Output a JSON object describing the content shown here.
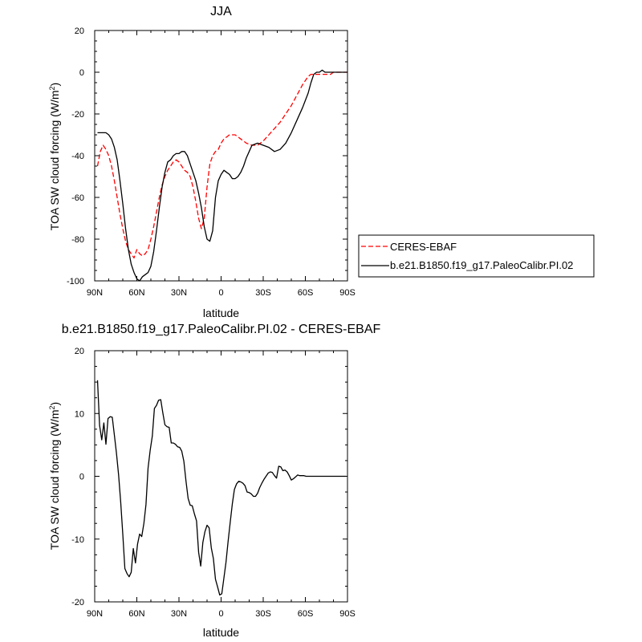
{
  "chart_data": [
    {
      "type": "line",
      "title": "JJA",
      "xlabel": "latitude",
      "ylabel": "TOA SW cloud forcing (W/m",
      "ylabel_sup": "2",
      "ylabel_end": ")",
      "xlim": [
        90,
        -90
      ],
      "ylim": [
        -100,
        20
      ],
      "xticks": [
        90,
        60,
        30,
        0,
        -30,
        -60,
        -90
      ],
      "xtick_labels": [
        "90N",
        "60N",
        "30N",
        "0",
        "30S",
        "60S",
        "90S"
      ],
      "yticks": [
        -100,
        -80,
        -60,
        -40,
        -20,
        0,
        20
      ],
      "ytick_labels": [
        "-100",
        "-80",
        "-60",
        "-40",
        "-20",
        "0",
        "20"
      ],
      "grid": false,
      "legend": "right",
      "series": [
        {
          "name": "CERES-EBAF",
          "color": "#ff0000",
          "dash": true,
          "x": [
            88,
            86,
            84,
            82,
            80,
            78,
            76,
            74,
            72,
            70,
            68,
            66,
            64,
            62,
            60,
            58,
            56,
            54,
            52,
            50,
            48,
            46,
            44,
            42,
            40,
            38,
            36,
            34,
            32,
            30,
            28,
            26,
            24,
            22,
            20,
            18,
            16,
            14,
            12,
            10,
            8,
            6,
            4,
            2,
            0,
            -2,
            -4,
            -6,
            -8,
            -10,
            -14,
            -18,
            -22,
            -26,
            -30,
            -34,
            -38,
            -42,
            -46,
            -50,
            -54,
            -58,
            -62,
            -64,
            -66,
            -68,
            -70,
            -72,
            -74,
            -76,
            -78,
            -80,
            -84,
            -88,
            -90
          ],
          "y": [
            -45,
            -38,
            -35,
            -37,
            -40,
            -45,
            -52,
            -60,
            -68,
            -75,
            -81,
            -85,
            -87,
            -89,
            -85,
            -87,
            -88,
            -87,
            -85,
            -80,
            -74,
            -67,
            -60,
            -54,
            -50,
            -47,
            -45,
            -43,
            -42,
            -43,
            -45,
            -47,
            -48,
            -50,
            -55,
            -62,
            -70,
            -75,
            -70,
            -55,
            -44,
            -40,
            -38,
            -37,
            -34,
            -32,
            -31,
            -30,
            -30,
            -30,
            -32,
            -34,
            -35,
            -35,
            -33,
            -30,
            -27,
            -24,
            -20,
            -16,
            -11,
            -6,
            -2,
            -1,
            -1,
            -1,
            -1,
            -1,
            -1,
            -1,
            -1,
            0,
            0,
            0,
            0
          ]
        },
        {
          "name": "b.e21.B1850.f19_g17.PaleoCalibr.PI.02",
          "color": "#000000",
          "dash": false,
          "x": [
            88,
            86,
            84,
            82,
            80,
            78,
            76,
            74,
            72,
            70,
            68,
            66,
            64,
            62,
            60,
            58,
            56,
            54,
            52,
            50,
            48,
            46,
            44,
            42,
            40,
            38,
            36,
            34,
            32,
            30,
            28,
            26,
            24,
            22,
            20,
            18,
            16,
            14,
            12,
            10,
            8,
            6,
            4,
            2,
            0,
            -2,
            -4,
            -6,
            -8,
            -10,
            -12,
            -14,
            -16,
            -18,
            -20,
            -22,
            -26,
            -30,
            -34,
            -38,
            -42,
            -46,
            -50,
            -54,
            -58,
            -62,
            -64,
            -66,
            -68,
            -70,
            -72,
            -74,
            -76,
            -78,
            -80,
            -84,
            -88,
            -90
          ],
          "y": [
            -29,
            -29,
            -29,
            -29,
            -30,
            -32,
            -36,
            -42,
            -52,
            -63,
            -75,
            -85,
            -92,
            -96,
            -99,
            -100,
            -98,
            -97,
            -96,
            -93,
            -86,
            -76,
            -65,
            -55,
            -48,
            -43,
            -42,
            -40,
            -39,
            -39,
            -38,
            -38,
            -40,
            -44,
            -48,
            -52,
            -58,
            -65,
            -74,
            -80,
            -81,
            -76,
            -60,
            -52,
            -49,
            -47,
            -48,
            -49,
            -51,
            -51,
            -50,
            -48,
            -45,
            -41,
            -38,
            -35,
            -34,
            -35,
            -36,
            -38,
            -37,
            -34,
            -29,
            -23,
            -17,
            -10,
            -5,
            -1,
            0,
            0,
            1,
            0,
            0,
            0,
            0,
            0,
            0,
            0
          ]
        }
      ]
    },
    {
      "type": "line",
      "title": "b.e21.B1850.f19_g17.PaleoCalibr.PI.02 - CERES-EBAF",
      "xlabel": "latitude",
      "ylabel": "TOA SW cloud forcing (W/m",
      "ylabel_sup": "2",
      "ylabel_end": ")",
      "xlim": [
        90,
        -90
      ],
      "ylim": [
        -20,
        20
      ],
      "xticks": [
        90,
        60,
        30,
        0,
        -30,
        -60,
        -90
      ],
      "xtick_labels": [
        "90N",
        "60N",
        "30N",
        "0",
        "30S",
        "60S",
        "90S"
      ],
      "yticks": [
        -20,
        -10,
        0,
        10,
        20
      ],
      "ytick_labels": [
        "-20",
        "-10",
        "0",
        "10",
        "20"
      ],
      "grid": false,
      "series": [
        {
          "color": "#000000",
          "dash": false,
          "x": [
            88,
            86.5,
            85,
            83.5,
            82,
            80.5,
            79,
            77.5,
            76,
            74.5,
            73,
            71.5,
            70,
            68.5,
            67,
            65.5,
            64,
            62.5,
            61,
            59.5,
            58,
            56.5,
            55,
            53.5,
            52,
            50.5,
            49,
            47.5,
            46,
            44.5,
            43,
            41.5,
            40,
            38.5,
            37,
            35.5,
            34,
            32.5,
            31,
            29.5,
            28,
            26.5,
            25,
            23.5,
            22,
            20.5,
            19,
            17.5,
            16,
            14.5,
            13,
            11.5,
            10,
            8.5,
            7,
            5.5,
            4,
            2.5,
            1,
            -0.5,
            -2,
            -3.5,
            -5,
            -6.5,
            -8,
            -9.5,
            -11,
            -12.5,
            -14,
            -15.5,
            -17,
            -18.5,
            -20,
            -21.5,
            -23,
            -24.5,
            -26,
            -27.5,
            -29,
            -30.5,
            -32,
            -33.5,
            -35,
            -36.5,
            -38,
            -39.5,
            -41,
            -42.5,
            -44,
            -45.5,
            -47,
            -48.5,
            -50,
            -51.5,
            -53,
            -54.5,
            -56,
            -57.5,
            -59,
            -60.5,
            -62,
            -63.5,
            -65,
            -66.5,
            -68,
            -69.5,
            -71,
            -72.5,
            -74,
            -75.5,
            -77,
            -78.5,
            -80,
            -81.5,
            -83,
            -84.5,
            -86,
            -87.5,
            -89
          ],
          "y": [
            15.3,
            8.1,
            5.8,
            8.5,
            5.1,
            9.2,
            9.5,
            9.4,
            6.6,
            3.7,
            0.2,
            -4.1,
            -9.2,
            -14.7,
            -15.5,
            -16,
            -15.3,
            -11.5,
            -13.8,
            -10.8,
            -9.2,
            -9.6,
            -7.5,
            -4.5,
            1.3,
            4.1,
            6.4,
            10.8,
            11.3,
            12.1,
            12.2,
            10.1,
            8.2,
            7.9,
            7.8,
            5.3,
            5.3,
            5.1,
            4.7,
            4.6,
            4,
            2.4,
            -0.8,
            -3.5,
            -4.6,
            -4.7,
            -6,
            -7.1,
            -12.1,
            -14.3,
            -10.5,
            -8.8,
            -7.8,
            -8.2,
            -11.4,
            -13.1,
            -16.4,
            -17.6,
            -18.9,
            -18.7,
            -16.2,
            -13.7,
            -10.3,
            -7.3,
            -4.4,
            -2.1,
            -1.2,
            -0.8,
            -0.9,
            -1.1,
            -1.5,
            -2.5,
            -2.6,
            -2.8,
            -3.2,
            -3.2,
            -2.7,
            -1.8,
            -1.1,
            -0.5,
            0,
            0.5,
            0.7,
            0.6,
            0.1,
            -0.3,
            1.6,
            1.5,
            0.9,
            1,
            0.7,
            0.1,
            -0.6,
            -0.4,
            -0.1,
            0.2,
            0.1,
            0.1,
            0.1,
            0,
            0,
            0,
            0,
            0,
            0,
            0,
            0,
            0,
            0,
            0,
            0,
            0,
            0,
            0,
            0,
            0,
            0,
            0,
            0
          ]
        }
      ]
    }
  ]
}
